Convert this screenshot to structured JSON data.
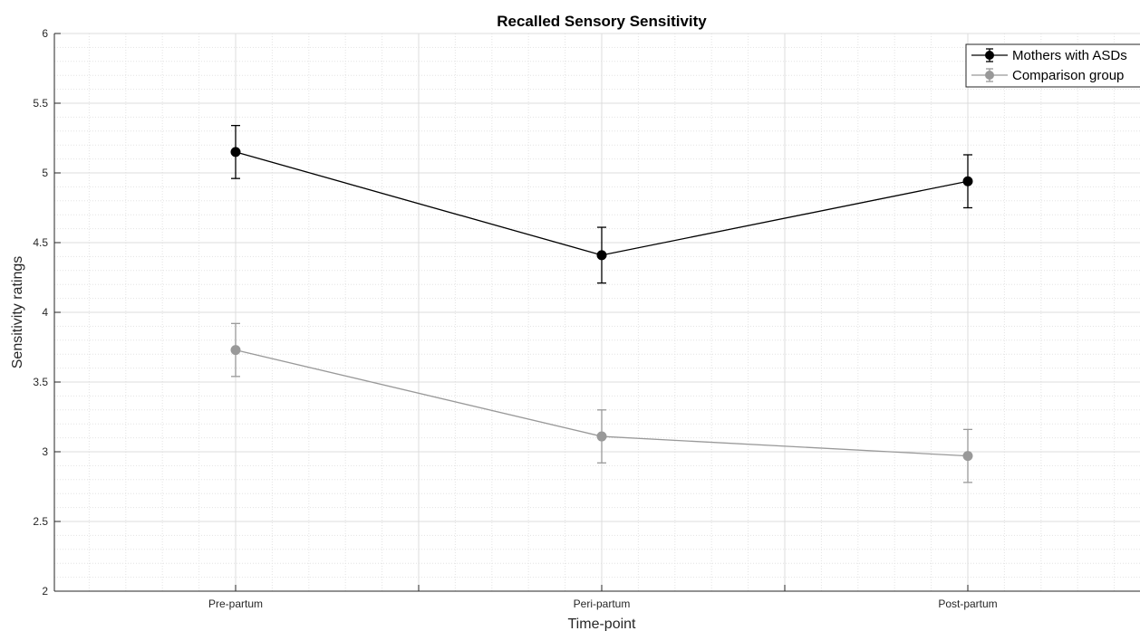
{
  "chart_data": {
    "type": "line",
    "title": "Recalled Sensory Sensitivity",
    "xlabel": "Time-point",
    "ylabel": "Sensitivity ratings",
    "categories": [
      "Pre-partum",
      "Peri-partum",
      "Post-partum"
    ],
    "ylim": [
      2,
      6
    ],
    "yticks": [
      "2",
      "2.5",
      "3",
      "3.5",
      "4",
      "4.5",
      "5",
      "5.5",
      "6"
    ],
    "grid": true,
    "minor_grid": true,
    "legend_position": "top-right",
    "series": [
      {
        "name": "Mothers with ASDs",
        "color": "#000000",
        "values": [
          5.15,
          4.41,
          4.94
        ],
        "error": [
          0.19,
          0.2,
          0.19
        ]
      },
      {
        "name": "Comparison group",
        "color": "#999999",
        "values": [
          3.73,
          3.11,
          2.97
        ],
        "error": [
          0.19,
          0.19,
          0.19
        ]
      }
    ]
  }
}
